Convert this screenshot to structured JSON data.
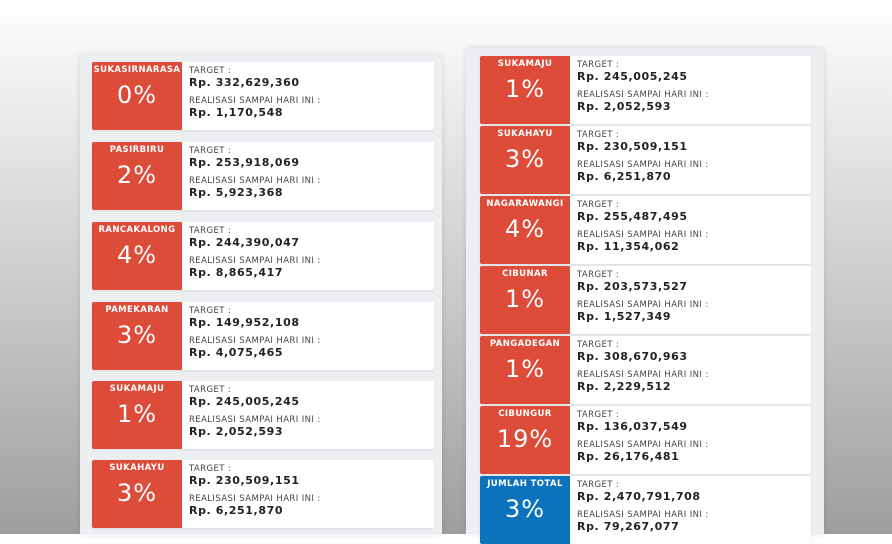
{
  "left": [
    {
      "name": "SUKASIRNARASA",
      "pct": "0%",
      "target_label": "TARGET :",
      "target": "Rp. 332,629,360",
      "real_label": "REALISASI SAMPAI HARI INI :",
      "real": "Rp. 1,170,548"
    },
    {
      "name": "PASIRBIRU",
      "pct": "2%",
      "target_label": "TARGET :",
      "target": "Rp. 253,918,069",
      "real_label": "REALISASI SAMPAI HARI INI :",
      "real": "Rp. 5,923,368"
    },
    {
      "name": "RANCAKALONG",
      "pct": "4%",
      "target_label": "TARGET :",
      "target": "Rp. 244,390,047",
      "real_label": "REALISASI SAMPAI HARI INI :",
      "real": "Rp. 8,865,417"
    },
    {
      "name": "PAMEKARAN",
      "pct": "3%",
      "target_label": "TARGET :",
      "target": "Rp. 149,952,108",
      "real_label": "REALISASI SAMPAI HARI INI :",
      "real": "Rp. 4,075,465"
    },
    {
      "name": "SUKAMAJU",
      "pct": "1%",
      "target_label": "TARGET :",
      "target": "Rp. 245,005,245",
      "real_label": "REALISASI SAMPAI HARI INI :",
      "real": "Rp. 2,052,593"
    },
    {
      "name": "SUKAHAYU",
      "pct": "3%",
      "target_label": "TARGET :",
      "target": "Rp. 230,509,151",
      "real_label": "REALISASI SAMPAI HARI INI :",
      "real": "Rp. 6,251,870"
    }
  ],
  "right": [
    {
      "name": "SUKAMAJU",
      "pct": "1%",
      "target_label": "TARGET :",
      "target": "Rp. 245,005,245",
      "real_label": "REALISASI SAMPAI HARI INI :",
      "real": "Rp. 2,052,593"
    },
    {
      "name": "SUKAHAYU",
      "pct": "3%",
      "target_label": "TARGET :",
      "target": "Rp. 230,509,151",
      "real_label": "REALISASI SAMPAI HARI INI :",
      "real": "Rp. 6,251,870"
    },
    {
      "name": "NAGARAWANGI",
      "pct": "4%",
      "target_label": "TARGET :",
      "target": "Rp. 255,487,495",
      "real_label": "REALISASI SAMPAI HARI INI :",
      "real": "Rp. 11,354,062"
    },
    {
      "name": "CIBUNAR",
      "pct": "1%",
      "target_label": "TARGET :",
      "target": "Rp. 203,573,527",
      "real_label": "REALISASI SAMPAI HARI INI :",
      "real": "Rp. 1,527,349"
    },
    {
      "name": "PANGADEGAN",
      "pct": "1%",
      "target_label": "TARGET :",
      "target": "Rp. 308,670,963",
      "real_label": "REALISASI SAMPAI HARI INI :",
      "real": "Rp. 2,229,512"
    },
    {
      "name": "CIBUNGUR",
      "pct": "19%",
      "target_label": "TARGET :",
      "target": "Rp. 136,037,549",
      "real_label": "REALISASI SAMPAI HARI INI :",
      "real": "Rp. 26,176,481"
    },
    {
      "name": "JUMLAH TOTAL",
      "pct": "3%",
      "target_label": "TARGET :",
      "target": "Rp. 2,470,791,708",
      "real_label": "REALISASI SAMPAI HARI INI :",
      "real": "Rp. 79,267,077"
    }
  ],
  "colors": {
    "tile_red": "#dd4b39",
    "tile_blue": "#0b72bb",
    "panel_bg": "#eceef2",
    "card_bg": "#ffffff"
  }
}
